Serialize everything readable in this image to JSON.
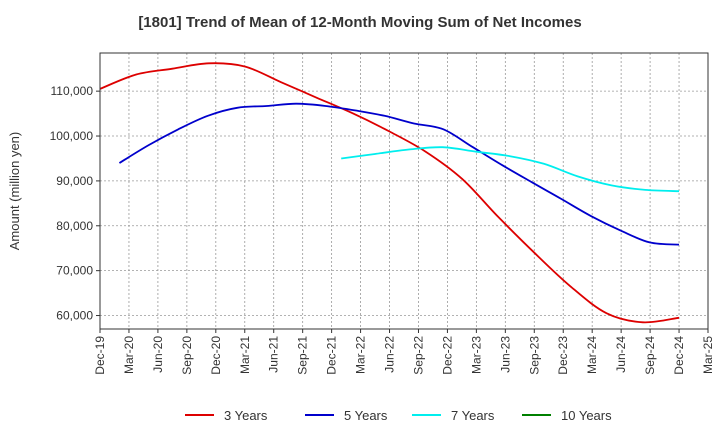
{
  "chart_data": {
    "type": "line",
    "title": "[1801]  Trend of Mean of 12-Month Moving Sum of Net Incomes",
    "xlabel": "",
    "ylabel": "Amount (million yen)",
    "x_ticks": [
      "Dec-19",
      "Mar-20",
      "Jun-20",
      "Sep-20",
      "Dec-20",
      "Mar-21",
      "Jun-21",
      "Sep-21",
      "Dec-21",
      "Mar-22",
      "Jun-22",
      "Sep-22",
      "Dec-22",
      "Mar-23",
      "Jun-23",
      "Sep-23",
      "Dec-23",
      "Mar-24",
      "Jun-24",
      "Sep-24",
      "Dec-24",
      "Mar-25"
    ],
    "y_ticks": [
      60000,
      70000,
      80000,
      90000,
      100000,
      110000
    ],
    "y_tick_labels": [
      "60,000",
      "70,000",
      "80,000",
      "90,000",
      "100,000",
      "110,000"
    ],
    "ylim": [
      57000,
      118500
    ],
    "xlim_quarters": [
      0,
      21
    ],
    "grid": true,
    "legend_position": "bottom",
    "series": [
      {
        "name": "3 Years",
        "color": "#dd0000",
        "start_quarter": 0,
        "values": [
          110500,
          113700,
          115000,
          116200,
          115500,
          112000,
          108500,
          105000,
          101000,
          96500,
          90500,
          82000,
          74000,
          66500,
          60500,
          58500,
          59500
        ]
      },
      {
        "name": "5 Years",
        "color": "#0000cc",
        "start_quarter": 0.67,
        "values": [
          94000,
          98000,
          101500,
          104500,
          106300,
          106700,
          107200,
          106700,
          105700,
          104500,
          102800,
          101500,
          97500,
          93500,
          89700,
          86000,
          82200,
          79000,
          76300,
          75800
        ]
      },
      {
        "name": "7 Years",
        "color": "#00eeee",
        "start_quarter": 8.33,
        "values": [
          95000,
          96000,
          97000,
          97500,
          96500,
          95500,
          93800,
          91000,
          89000,
          88000,
          87700
        ]
      },
      {
        "name": "10 Years",
        "color": "#008000",
        "start_quarter": 0,
        "values": []
      }
    ]
  }
}
